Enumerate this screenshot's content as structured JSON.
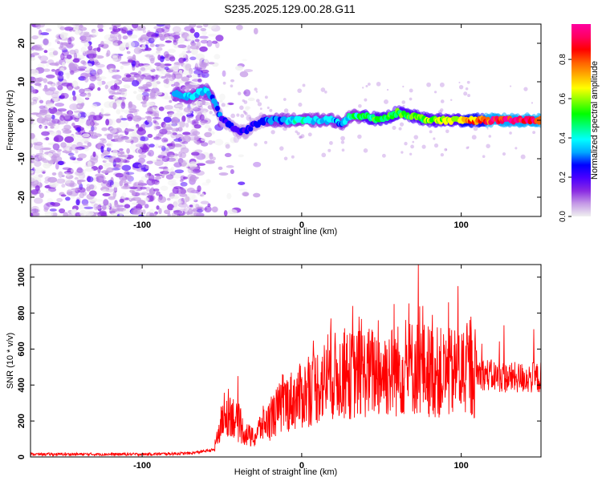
{
  "title": "S235.2025.129.00.28.G11",
  "chart_data": [
    {
      "type": "heatmap",
      "xlabel": "Height of straight line (km)",
      "ylabel": "Frequency (Hz)",
      "xlim": [
        -170,
        150
      ],
      "ylim": [
        -25,
        25
      ],
      "x_ticks": [
        -100,
        0,
        100
      ],
      "y_ticks": [
        -20,
        -10,
        0,
        10,
        20
      ],
      "colorbar": {
        "label": "Normalized spectral amplitude",
        "range": [
          0.0,
          0.98
        ],
        "ticks": [
          0.0,
          0.2,
          0.4,
          0.6,
          0.8
        ],
        "colormap": [
          "#f0f0f0",
          "#c59ae6",
          "#8a2be2",
          "#4b00ff",
          "#0000ff",
          "#00a8ff",
          "#00ffff",
          "#00ff80",
          "#00ff00",
          "#80ff00",
          "#ffff00",
          "#ffb000",
          "#ff6000",
          "#ff0000",
          "#ff0060",
          "#ff00a0"
        ]
      },
      "ridge": {
        "x": [
          -80,
          -70,
          -60,
          -55,
          -50,
          -45,
          -40,
          -35,
          -30,
          -20,
          -10,
          0,
          10,
          20,
          25,
          30,
          40,
          50,
          60,
          70,
          80,
          90,
          100,
          110,
          120,
          130,
          150
        ],
        "y": [
          7,
          6,
          8,
          5,
          0,
          -1,
          -3,
          -3,
          -1,
          0,
          0,
          0,
          0,
          0,
          -1,
          1,
          1,
          0,
          2,
          1,
          0,
          0,
          0,
          0,
          0,
          0,
          0
        ],
        "amplitude": [
          0.3,
          0.35,
          0.35,
          0.3,
          0.25,
          0.22,
          0.2,
          0.22,
          0.25,
          0.3,
          0.35,
          0.4,
          0.38,
          0.35,
          0.3,
          0.42,
          0.48,
          0.5,
          0.52,
          0.55,
          0.58,
          0.6,
          0.65,
          0.8,
          0.88,
          0.92,
          0.95
        ]
      }
    },
    {
      "type": "line",
      "xlabel": "Height of straight line (km)",
      "ylabel": "SNR (10 * v/v)",
      "xlim": [
        -170,
        150
      ],
      "ylim": [
        0,
        1070
      ],
      "x_ticks": [
        -100,
        0,
        100
      ],
      "y_ticks": [
        0,
        200,
        400,
        600,
        800,
        1000
      ],
      "color": "#ff0000",
      "envelope": {
        "x": [
          -170,
          -100,
          -70,
          -55,
          -50,
          -45,
          -40,
          -35,
          -30,
          -25,
          -20,
          -15,
          -10,
          0,
          10,
          20,
          30,
          40,
          50,
          60,
          70,
          80,
          90,
          100,
          110,
          120,
          130,
          150
        ],
        "y": [
          15,
          15,
          20,
          40,
          200,
          260,
          180,
          130,
          100,
          180,
          200,
          260,
          300,
          340,
          400,
          450,
          450,
          470,
          470,
          480,
          500,
          480,
          460,
          470,
          470,
          450,
          440,
          440
        ]
      },
      "peaks": {
        "x": [
          -40,
          18,
          32,
          36,
          48,
          58,
          73,
          76,
          82,
          92,
          98,
          106
        ],
        "y": [
          450,
          690,
          840,
          780,
          760,
          850,
          1070,
          840,
          790,
          860,
          950,
          780
        ]
      }
    }
  ]
}
